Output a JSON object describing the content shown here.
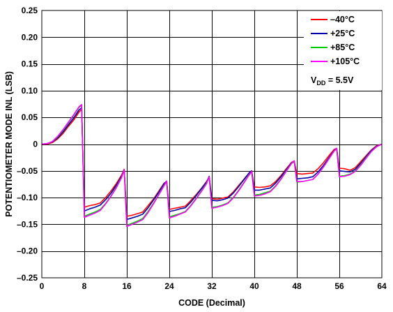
{
  "chart_data": {
    "type": "line",
    "xlabel": "CODE (Decimal)",
    "ylabel": "POTENTIOMETER MODE INL (LSB)",
    "xlim": [
      0,
      64
    ],
    "ylim": [
      -0.25,
      0.25
    ],
    "grid": true,
    "legend_position": "top-right",
    "x_ticks": [
      0,
      8,
      16,
      24,
      32,
      40,
      48,
      56,
      64
    ],
    "x_tick_labels": [
      "0",
      "8",
      "16",
      "24",
      "32",
      "40",
      "48",
      "56",
      "64"
    ],
    "y_ticks": [
      0.25,
      0.2,
      0.15,
      0.1,
      0.05,
      0,
      -0.05,
      -0.1,
      -0.15,
      -0.2,
      -0.25
    ],
    "y_tick_labels": [
      "0.25",
      "0.20",
      "0.15",
      "0.10",
      "0.05",
      "0",
      "–0.05",
      "–0.10",
      "–0.15",
      "–0.20",
      "–0.25"
    ],
    "annotation": {
      "prefix": "V",
      "subscript": "DD",
      "suffix": " = 5.5V"
    },
    "series": [
      {
        "name": "–40°C",
        "color": "#ff0000",
        "x": [
          0,
          1,
          2,
          3,
          4,
          5,
          6,
          7,
          7.5,
          8,
          9,
          10,
          11,
          12,
          13,
          14,
          15,
          15.5,
          16,
          17,
          18,
          19,
          20,
          21,
          22,
          23,
          23.5,
          24,
          25,
          26,
          27,
          28,
          29,
          30,
          31,
          31.5,
          32,
          33,
          34,
          35,
          36,
          37,
          38,
          39,
          39.5,
          40,
          41,
          42,
          43,
          44,
          45,
          46,
          47,
          47.5,
          48,
          49,
          50,
          51,
          52,
          53,
          54,
          55,
          55.5,
          56,
          57,
          58,
          59,
          60,
          61,
          62,
          63,
          64
        ],
        "y": [
          0,
          0,
          0.003,
          0.01,
          0.02,
          0.033,
          0.045,
          0.06,
          0.065,
          -0.118,
          -0.115,
          -0.113,
          -0.11,
          -0.1,
          -0.088,
          -0.074,
          -0.058,
          -0.047,
          -0.135,
          -0.133,
          -0.13,
          -0.127,
          -0.115,
          -0.103,
          -0.088,
          -0.073,
          -0.07,
          -0.122,
          -0.12,
          -0.118,
          -0.116,
          -0.106,
          -0.095,
          -0.083,
          -0.07,
          -0.062,
          -0.102,
          -0.103,
          -0.101,
          -0.099,
          -0.09,
          -0.078,
          -0.066,
          -0.054,
          -0.05,
          -0.08,
          -0.081,
          -0.08,
          -0.078,
          -0.07,
          -0.059,
          -0.046,
          -0.034,
          -0.032,
          -0.055,
          -0.056,
          -0.055,
          -0.054,
          -0.046,
          -0.035,
          -0.022,
          -0.01,
          -0.008,
          -0.045,
          -0.046,
          -0.049,
          -0.044,
          -0.033,
          -0.022,
          -0.011,
          -0.003,
          0
        ]
      },
      {
        "name": "+25°C",
        "color": "#0000aa",
        "x": [
          0,
          1,
          2,
          3,
          4,
          5,
          6,
          7,
          7.5,
          8,
          9,
          10,
          11,
          12,
          13,
          14,
          15,
          15.5,
          16,
          17,
          18,
          19,
          20,
          21,
          22,
          23,
          23.5,
          24,
          25,
          26,
          27,
          28,
          29,
          30,
          31,
          31.5,
          32,
          33,
          34,
          35,
          36,
          37,
          38,
          39,
          39.5,
          40,
          41,
          42,
          43,
          44,
          45,
          46,
          47,
          47.5,
          48,
          49,
          50,
          51,
          52,
          53,
          54,
          55,
          55.5,
          56,
          57,
          58,
          59,
          60,
          61,
          62,
          63,
          64
        ],
        "y": [
          0,
          0.001,
          0.004,
          0.012,
          0.023,
          0.036,
          0.049,
          0.064,
          0.068,
          -0.125,
          -0.121,
          -0.118,
          -0.114,
          -0.104,
          -0.092,
          -0.077,
          -0.06,
          -0.048,
          -0.141,
          -0.138,
          -0.135,
          -0.131,
          -0.119,
          -0.105,
          -0.09,
          -0.074,
          -0.069,
          -0.126,
          -0.124,
          -0.121,
          -0.119,
          -0.109,
          -0.097,
          -0.084,
          -0.071,
          -0.06,
          -0.105,
          -0.106,
          -0.104,
          -0.101,
          -0.092,
          -0.08,
          -0.067,
          -0.054,
          -0.05,
          -0.086,
          -0.086,
          -0.084,
          -0.082,
          -0.073,
          -0.061,
          -0.048,
          -0.035,
          -0.032,
          -0.065,
          -0.064,
          -0.063,
          -0.061,
          -0.052,
          -0.04,
          -0.026,
          -0.012,
          -0.008,
          -0.05,
          -0.051,
          -0.052,
          -0.047,
          -0.036,
          -0.024,
          -0.012,
          -0.004,
          0
        ]
      },
      {
        "name": "+85°C",
        "color": "#00cc00",
        "x": [
          0,
          1,
          2,
          3,
          4,
          5,
          6,
          7,
          7.5,
          8,
          9,
          10,
          11,
          12,
          13,
          14,
          15,
          15.5,
          16,
          17,
          18,
          19,
          20,
          21,
          22,
          23,
          23.5,
          24,
          25,
          26,
          27,
          28,
          29,
          30,
          31,
          31.5,
          32,
          33,
          34,
          35,
          36,
          37,
          38,
          39,
          39.5,
          40,
          41,
          42,
          43,
          44,
          45,
          46,
          47,
          47.5,
          48,
          49,
          50,
          51,
          52,
          53,
          54,
          55,
          55.5,
          56,
          57,
          58,
          59,
          60,
          61,
          62,
          63,
          64
        ],
        "y": [
          0,
          0.001,
          0.005,
          0.014,
          0.026,
          0.04,
          0.054,
          0.069,
          0.072,
          -0.135,
          -0.131,
          -0.127,
          -0.122,
          -0.111,
          -0.097,
          -0.081,
          -0.062,
          -0.048,
          -0.152,
          -0.148,
          -0.144,
          -0.139,
          -0.126,
          -0.111,
          -0.094,
          -0.077,
          -0.07,
          -0.136,
          -0.133,
          -0.13,
          -0.126,
          -0.115,
          -0.102,
          -0.088,
          -0.073,
          -0.061,
          -0.118,
          -0.117,
          -0.114,
          -0.11,
          -0.1,
          -0.087,
          -0.072,
          -0.057,
          -0.052,
          -0.095,
          -0.094,
          -0.091,
          -0.088,
          -0.078,
          -0.065,
          -0.05,
          -0.036,
          -0.033,
          -0.071,
          -0.07,
          -0.068,
          -0.066,
          -0.056,
          -0.043,
          -0.028,
          -0.013,
          -0.009,
          -0.06,
          -0.059,
          -0.056,
          -0.05,
          -0.039,
          -0.026,
          -0.014,
          -0.005,
          0
        ]
      },
      {
        "name": "+105°C",
        "color": "#ff00ff",
        "x": [
          0,
          1,
          2,
          3,
          4,
          5,
          6,
          7,
          7.5,
          8,
          9,
          10,
          11,
          12,
          13,
          14,
          15,
          15.5,
          16,
          17,
          18,
          19,
          20,
          21,
          22,
          23,
          23.5,
          24,
          25,
          26,
          27,
          28,
          29,
          30,
          31,
          31.5,
          32,
          33,
          34,
          35,
          36,
          37,
          38,
          39,
          39.5,
          40,
          41,
          42,
          43,
          44,
          45,
          46,
          47,
          47.5,
          48,
          49,
          50,
          51,
          52,
          53,
          54,
          55,
          55.5,
          56,
          57,
          58,
          59,
          60,
          61,
          62,
          63,
          64
        ],
        "y": [
          0,
          0.001,
          0.005,
          0.015,
          0.027,
          0.041,
          0.055,
          0.07,
          0.074,
          -0.137,
          -0.133,
          -0.129,
          -0.124,
          -0.112,
          -0.098,
          -0.082,
          -0.063,
          -0.048,
          -0.154,
          -0.15,
          -0.146,
          -0.141,
          -0.128,
          -0.112,
          -0.095,
          -0.078,
          -0.069,
          -0.138,
          -0.135,
          -0.131,
          -0.127,
          -0.116,
          -0.103,
          -0.089,
          -0.074,
          -0.061,
          -0.12,
          -0.118,
          -0.115,
          -0.111,
          -0.101,
          -0.088,
          -0.073,
          -0.058,
          -0.051,
          -0.097,
          -0.096,
          -0.093,
          -0.089,
          -0.079,
          -0.066,
          -0.051,
          -0.036,
          -0.031,
          -0.07,
          -0.07,
          -0.068,
          -0.066,
          -0.056,
          -0.043,
          -0.028,
          -0.013,
          -0.008,
          -0.061,
          -0.06,
          -0.057,
          -0.051,
          -0.04,
          -0.027,
          -0.014,
          -0.005,
          0
        ]
      }
    ]
  }
}
